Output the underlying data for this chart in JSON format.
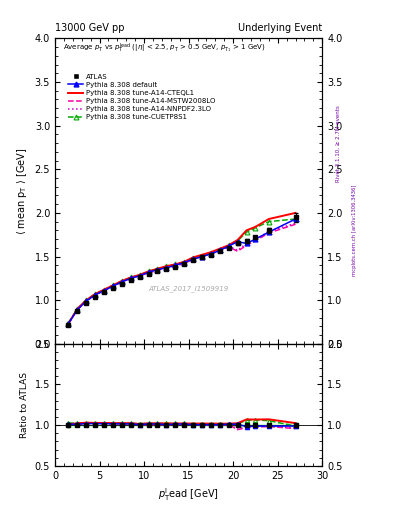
{
  "title_left": "13000 GeV pp",
  "title_right": "Underlying Event",
  "right_label_top": "Rivet 3.1.10, ≥ 2.7M events",
  "right_label_bottom": "mcplots.cern.ch [arXiv:1306.3436]",
  "watermark": "ATLAS_2017_I1509919",
  "xlim": [
    0,
    30
  ],
  "ylim_main": [
    0.5,
    4.0
  ],
  "ylim_ratio": [
    0.5,
    2.0
  ],
  "yticks_main": [
    0.5,
    1.0,
    1.5,
    2.0,
    2.5,
    3.0,
    3.5,
    4.0
  ],
  "yticks_ratio": [
    0.5,
    1.0,
    1.5,
    2.0
  ],
  "xticks": [
    0,
    5,
    10,
    15,
    20,
    25,
    30
  ],
  "atlas_x": [
    1.5,
    2.5,
    3.5,
    4.5,
    5.5,
    6.5,
    7.5,
    8.5,
    9.5,
    10.5,
    11.5,
    12.5,
    13.5,
    14.5,
    15.5,
    16.5,
    17.5,
    18.5,
    19.5,
    20.5,
    21.5,
    22.5,
    24.0,
    27.0
  ],
  "atlas_y": [
    0.72,
    0.88,
    0.97,
    1.04,
    1.09,
    1.14,
    1.19,
    1.23,
    1.27,
    1.3,
    1.33,
    1.36,
    1.38,
    1.41,
    1.46,
    1.49,
    1.52,
    1.56,
    1.6,
    1.65,
    1.68,
    1.72,
    1.8,
    1.95
  ],
  "atlas_yerr": [
    0.02,
    0.01,
    0.01,
    0.01,
    0.01,
    0.01,
    0.01,
    0.01,
    0.01,
    0.01,
    0.01,
    0.01,
    0.01,
    0.01,
    0.01,
    0.01,
    0.01,
    0.01,
    0.01,
    0.02,
    0.02,
    0.02,
    0.03,
    0.05
  ],
  "default_x": [
    1.5,
    2.5,
    3.5,
    4.5,
    5.5,
    6.5,
    7.5,
    8.5,
    9.5,
    10.5,
    11.5,
    12.5,
    13.5,
    14.5,
    15.5,
    16.5,
    17.5,
    18.5,
    19.5,
    20.5,
    21.5,
    22.5,
    24.0,
    27.0
  ],
  "default_y": [
    0.73,
    0.89,
    0.99,
    1.06,
    1.11,
    1.16,
    1.21,
    1.25,
    1.28,
    1.32,
    1.35,
    1.37,
    1.4,
    1.43,
    1.47,
    1.5,
    1.53,
    1.57,
    1.62,
    1.67,
    1.65,
    1.7,
    1.78,
    1.93
  ],
  "cteql1_x": [
    1.5,
    2.5,
    3.5,
    4.5,
    5.5,
    6.5,
    7.5,
    8.5,
    9.5,
    10.5,
    11.5,
    12.5,
    13.5,
    14.5,
    15.5,
    16.5,
    17.5,
    18.5,
    19.5,
    20.5,
    21.5,
    22.5,
    24.0,
    27.0
  ],
  "cteql1_y": [
    0.73,
    0.9,
    1.0,
    1.07,
    1.12,
    1.17,
    1.22,
    1.26,
    1.29,
    1.33,
    1.36,
    1.39,
    1.41,
    1.44,
    1.49,
    1.52,
    1.55,
    1.59,
    1.63,
    1.69,
    1.8,
    1.84,
    1.93,
    2.0
  ],
  "mstw_x": [
    1.5,
    2.5,
    3.5,
    4.5,
    5.5,
    6.5,
    7.5,
    8.5,
    9.5,
    10.5,
    11.5,
    12.5,
    13.5,
    14.5,
    15.5,
    16.5,
    17.5,
    18.5,
    19.5,
    20.5,
    21.5,
    22.5,
    24.0,
    27.0
  ],
  "mstw_y": [
    0.73,
    0.89,
    0.99,
    1.06,
    1.11,
    1.16,
    1.21,
    1.25,
    1.28,
    1.31,
    1.34,
    1.37,
    1.39,
    1.42,
    1.47,
    1.5,
    1.53,
    1.57,
    1.61,
    1.56,
    1.63,
    1.68,
    1.77,
    1.87
  ],
  "nnpdf_x": [
    1.5,
    2.5,
    3.5,
    4.5,
    5.5,
    6.5,
    7.5,
    8.5,
    9.5,
    10.5,
    11.5,
    12.5,
    13.5,
    14.5,
    15.5,
    16.5,
    17.5,
    18.5,
    19.5,
    20.5,
    21.5,
    22.5,
    24.0,
    27.0
  ],
  "nnpdf_y": [
    0.73,
    0.89,
    0.99,
    1.06,
    1.11,
    1.16,
    1.21,
    1.25,
    1.28,
    1.32,
    1.35,
    1.37,
    1.4,
    1.43,
    1.47,
    1.5,
    1.53,
    1.57,
    1.62,
    1.57,
    1.65,
    1.69,
    1.79,
    1.88
  ],
  "cuetp_x": [
    1.5,
    2.5,
    3.5,
    4.5,
    5.5,
    6.5,
    7.5,
    8.5,
    9.5,
    10.5,
    11.5,
    12.5,
    13.5,
    14.5,
    15.5,
    16.5,
    17.5,
    18.5,
    19.5,
    20.5,
    21.5,
    22.5,
    24.0,
    27.0
  ],
  "cuetp_y": [
    0.74,
    0.9,
    1.0,
    1.07,
    1.12,
    1.17,
    1.22,
    1.26,
    1.29,
    1.33,
    1.36,
    1.39,
    1.41,
    1.44,
    1.48,
    1.51,
    1.54,
    1.58,
    1.63,
    1.68,
    1.78,
    1.83,
    1.9,
    1.93
  ],
  "color_atlas": "#000000",
  "color_default": "#0000ff",
  "color_cteql1": "#ff0000",
  "color_mstw": "#ff00aa",
  "color_nnpdf": "#cc00cc",
  "color_cuetp": "#00aa00",
  "ratio_band_color": "#ccffcc"
}
